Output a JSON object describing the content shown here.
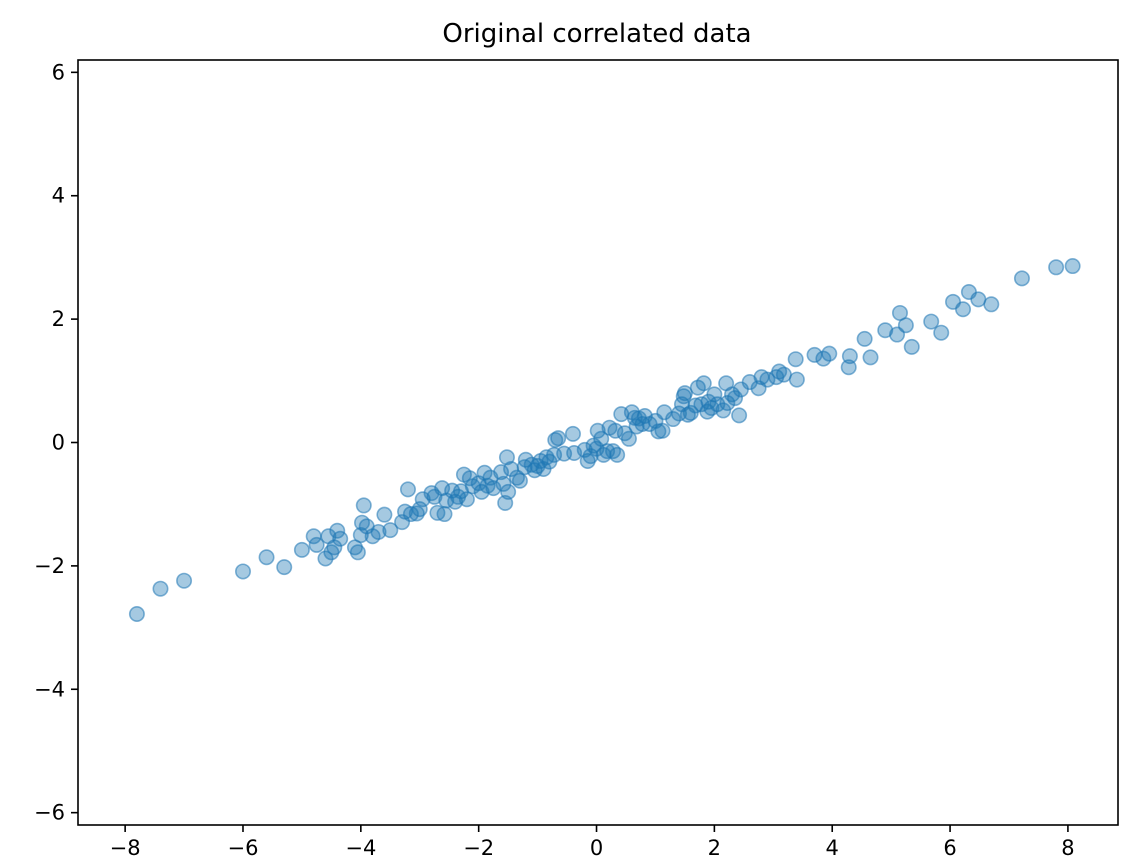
{
  "chart_data": {
    "type": "scatter",
    "title": "Original correlated data",
    "xlabel": "",
    "ylabel": "",
    "xlim": [
      -8.8,
      8.85
    ],
    "ylim": [
      -6.2,
      6.2
    ],
    "xticks": [
      -8,
      -6,
      -4,
      -2,
      0,
      2,
      4,
      6,
      8
    ],
    "yticks": [
      -6,
      -4,
      -2,
      0,
      2,
      4,
      6
    ],
    "xtick_labels": [
      "−8",
      "−6",
      "−4",
      "−2",
      "0",
      "2",
      "4",
      "6",
      "8"
    ],
    "ytick_labels": [
      "−6",
      "−4",
      "−2",
      "0",
      "2",
      "4",
      "6"
    ],
    "grid": false,
    "marker_color": "#1f77b4",
    "marker_alpha": 0.4,
    "series": [
      {
        "points": [
          [
            -7.8,
            -2.78
          ],
          [
            -7.4,
            -2.37
          ],
          [
            -7.0,
            -2.24
          ],
          [
            -6.0,
            -2.09
          ],
          [
            -5.6,
            -1.86
          ],
          [
            -5.3,
            -2.02
          ],
          [
            -5.0,
            -1.74
          ],
          [
            -4.8,
            -1.52
          ],
          [
            -4.75,
            -1.66
          ],
          [
            -4.6,
            -1.88
          ],
          [
            -4.55,
            -1.52
          ],
          [
            -4.5,
            -1.78
          ],
          [
            -4.45,
            -1.7
          ],
          [
            -4.4,
            -1.43
          ],
          [
            -4.35,
            -1.56
          ],
          [
            -4.1,
            -1.7
          ],
          [
            -4.05,
            -1.78
          ],
          [
            -4.0,
            -1.5
          ],
          [
            -3.98,
            -1.3
          ],
          [
            -3.95,
            -1.02
          ],
          [
            -3.9,
            -1.36
          ],
          [
            -3.8,
            -1.52
          ],
          [
            -3.7,
            -1.45
          ],
          [
            -3.6,
            -1.17
          ],
          [
            -3.5,
            -1.42
          ],
          [
            -3.3,
            -1.29
          ],
          [
            -3.25,
            -1.12
          ],
          [
            -3.2,
            -0.76
          ],
          [
            -3.15,
            -1.16
          ],
          [
            -3.05,
            -1.15
          ],
          [
            -3.0,
            -1.08
          ],
          [
            -2.95,
            -0.92
          ],
          [
            -2.8,
            -0.82
          ],
          [
            -2.75,
            -0.88
          ],
          [
            -2.7,
            -1.14
          ],
          [
            -2.62,
            -0.74
          ],
          [
            -2.58,
            -1.16
          ],
          [
            -2.55,
            -0.94
          ],
          [
            -2.45,
            -0.78
          ],
          [
            -2.4,
            -0.96
          ],
          [
            -2.35,
            -0.88
          ],
          [
            -2.3,
            -0.79
          ],
          [
            -2.25,
            -0.52
          ],
          [
            -2.2,
            -0.92
          ],
          [
            -2.15,
            -0.58
          ],
          [
            -2.1,
            -0.71
          ],
          [
            -2.0,
            -0.66
          ],
          [
            -1.95,
            -0.8
          ],
          [
            -1.9,
            -0.49
          ],
          [
            -1.85,
            -0.7
          ],
          [
            -1.8,
            -0.57
          ],
          [
            -1.75,
            -0.74
          ],
          [
            -1.62,
            -0.48
          ],
          [
            -1.58,
            -0.67
          ],
          [
            -1.55,
            -0.98
          ],
          [
            -1.52,
            -0.24
          ],
          [
            -1.5,
            -0.8
          ],
          [
            -1.45,
            -0.43
          ],
          [
            -1.35,
            -0.57
          ],
          [
            -1.3,
            -0.62
          ],
          [
            -1.22,
            -0.4
          ],
          [
            -1.2,
            -0.28
          ],
          [
            -1.1,
            -0.36
          ],
          [
            -1.05,
            -0.45
          ],
          [
            -1.0,
            -0.38
          ],
          [
            -0.95,
            -0.3
          ],
          [
            -0.9,
            -0.43
          ],
          [
            -0.85,
            -0.24
          ],
          [
            -0.8,
            -0.31
          ],
          [
            -0.72,
            -0.2
          ],
          [
            -0.7,
            0.04
          ],
          [
            -0.65,
            0.07
          ],
          [
            -0.55,
            -0.18
          ],
          [
            -0.4,
            0.14
          ],
          [
            -0.38,
            -0.17
          ],
          [
            -0.2,
            -0.12
          ],
          [
            -0.15,
            -0.3
          ],
          [
            -0.1,
            -0.22
          ],
          [
            -0.05,
            -0.05
          ],
          [
            0.0,
            -0.1
          ],
          [
            0.02,
            0.19
          ],
          [
            0.08,
            0.06
          ],
          [
            0.12,
            -0.2
          ],
          [
            0.18,
            -0.14
          ],
          [
            0.22,
            0.24
          ],
          [
            0.28,
            -0.14
          ],
          [
            0.32,
            0.19
          ],
          [
            0.35,
            -0.2
          ],
          [
            0.42,
            0.46
          ],
          [
            0.48,
            0.15
          ],
          [
            0.55,
            0.06
          ],
          [
            0.6,
            0.49
          ],
          [
            0.65,
            0.4
          ],
          [
            0.68,
            0.26
          ],
          [
            0.72,
            0.39
          ],
          [
            0.78,
            0.3
          ],
          [
            0.82,
            0.43
          ],
          [
            0.9,
            0.3
          ],
          [
            1.0,
            0.35
          ],
          [
            1.05,
            0.18
          ],
          [
            1.12,
            0.19
          ],
          [
            1.15,
            0.49
          ],
          [
            1.3,
            0.38
          ],
          [
            1.4,
            0.47
          ],
          [
            1.45,
            0.62
          ],
          [
            1.48,
            0.75
          ],
          [
            1.5,
            0.8
          ],
          [
            1.55,
            0.45
          ],
          [
            1.6,
            0.48
          ],
          [
            1.68,
            0.6
          ],
          [
            1.72,
            0.89
          ],
          [
            1.78,
            0.62
          ],
          [
            1.82,
            0.96
          ],
          [
            1.88,
            0.5
          ],
          [
            1.9,
            0.66
          ],
          [
            1.95,
            0.56
          ],
          [
            2.0,
            0.78
          ],
          [
            2.05,
            0.62
          ],
          [
            2.15,
            0.52
          ],
          [
            2.2,
            0.96
          ],
          [
            2.22,
            0.64
          ],
          [
            2.3,
            0.78
          ],
          [
            2.35,
            0.72
          ],
          [
            2.42,
            0.44
          ],
          [
            2.45,
            0.86
          ],
          [
            2.6,
            0.98
          ],
          [
            2.75,
            0.88
          ],
          [
            2.8,
            1.06
          ],
          [
            2.9,
            1.02
          ],
          [
            3.05,
            1.06
          ],
          [
            3.1,
            1.15
          ],
          [
            3.18,
            1.1
          ],
          [
            3.38,
            1.35
          ],
          [
            3.4,
            1.02
          ],
          [
            3.7,
            1.42
          ],
          [
            3.85,
            1.36
          ],
          [
            3.95,
            1.44
          ],
          [
            4.28,
            1.22
          ],
          [
            4.3,
            1.4
          ],
          [
            4.55,
            1.68
          ],
          [
            4.65,
            1.38
          ],
          [
            4.9,
            1.82
          ],
          [
            5.1,
            1.75
          ],
          [
            5.15,
            2.1
          ],
          [
            5.25,
            1.9
          ],
          [
            5.35,
            1.55
          ],
          [
            5.68,
            1.96
          ],
          [
            5.85,
            1.78
          ],
          [
            6.05,
            2.28
          ],
          [
            6.22,
            2.16
          ],
          [
            6.32,
            2.44
          ],
          [
            6.48,
            2.32
          ],
          [
            6.7,
            2.24
          ],
          [
            7.22,
            2.66
          ],
          [
            7.8,
            2.84
          ],
          [
            8.08,
            2.86
          ]
        ]
      }
    ]
  }
}
